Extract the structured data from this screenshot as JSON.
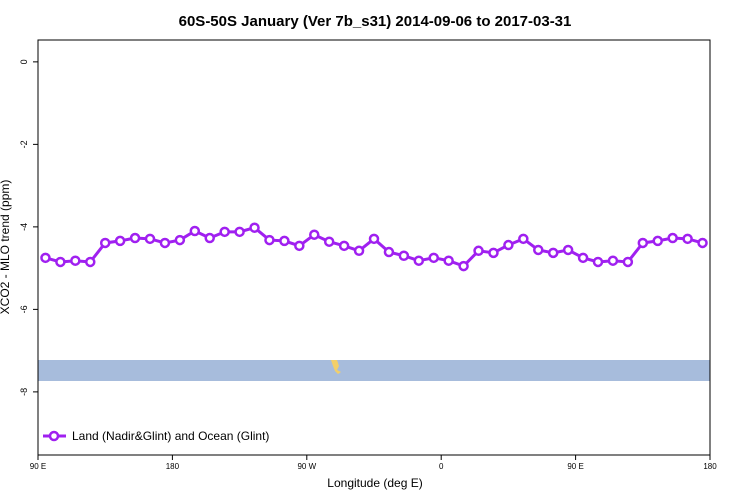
{
  "chart_data": {
    "type": "line",
    "title": "60S-50S January (Ver 7b_s31)   2014-09-06 to 2017-03-31",
    "xlabel": "Longitude (deg E)",
    "ylabel": "XCO2 - MLO trend (ppm)",
    "x": [
      95,
      105,
      115,
      125,
      135,
      145,
      155,
      165,
      175,
      185,
      195,
      205,
      215,
      225,
      235,
      245,
      255,
      265,
      275,
      285,
      295,
      305,
      315,
      325,
      335,
      345,
      355,
      365,
      375,
      385,
      395,
      405,
      415,
      425,
      435,
      445,
      455,
      465,
      475,
      485,
      495,
      505,
      515,
      525,
      535
    ],
    "series": [
      {
        "name": "Land (Nadir&Glint) and Ocean (Glint)",
        "color": "#a020f0",
        "values": [
          -4.75,
          -4.85,
          -4.82,
          -4.85,
          -4.39,
          -4.34,
          -4.27,
          -4.29,
          -4.39,
          -4.32,
          -4.1,
          -4.27,
          -4.12,
          -4.12,
          -4.02,
          -4.32,
          -4.34,
          -4.46,
          -4.19,
          -4.36,
          -4.46,
          -4.58,
          -4.29,
          -4.61,
          -4.7,
          -4.82,
          -4.75,
          -4.82,
          -4.95,
          -4.58,
          -4.63,
          -4.44,
          -4.29,
          -4.56,
          -4.63,
          -4.56,
          -4.75,
          -4.85,
          -4.82,
          -4.85,
          -4.39,
          -4.34,
          -4.27,
          -4.29,
          -4.39
        ]
      }
    ],
    "xlim": [
      90,
      540
    ],
    "xticks": [
      {
        "value": 90,
        "label": "90 E"
      },
      180,
      {
        "value": 270,
        "label": "90 W"
      },
      {
        "value": 360,
        "label": "0"
      },
      {
        "value": 450,
        "label": "90 E"
      },
      {
        "value": 540,
        "label": "180"
      }
    ],
    "ylim": [
      -9.53,
      0.53
    ],
    "yticks": [
      0,
      -2,
      -4,
      -6,
      -8
    ],
    "legend": "bottom-left"
  }
}
